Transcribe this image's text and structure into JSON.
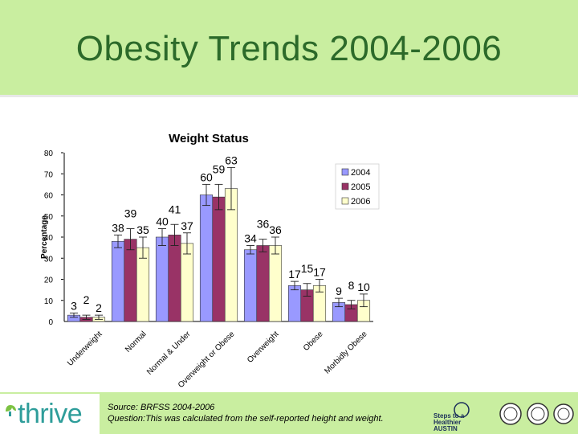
{
  "slide": {
    "title": "Obesity Trends 2004-2006",
    "source_line": "Source: BRFSS 2004-2006",
    "question_line": "Question:This was calculated from the self-reported height and weight.",
    "logo_text": "thrive",
    "partner_logo_text": "Steps to a Healthier AUSTIN"
  },
  "colors": {
    "band": "#c9eea0",
    "title": "#2c6a2a",
    "series_2004": "#9999ff",
    "series_2005": "#993366",
    "series_2006": "#ffffcc"
  },
  "chart_data": {
    "type": "bar",
    "title": "Weight Status",
    "xlabel": "",
    "ylabel": "Percentage",
    "ylim": [
      0,
      80
    ],
    "yticks": [
      0,
      10,
      20,
      30,
      40,
      50,
      60,
      70,
      80
    ],
    "legend_position": "top-right",
    "grid": false,
    "error_bars": true,
    "categories": [
      "Underweight",
      "Normal",
      "Normal & Under",
      "Overweight or Obese",
      "Overweight",
      "Obese",
      "Morbidly Obese"
    ],
    "series": [
      {
        "name": "2004",
        "values": [
          3,
          38,
          40,
          60,
          34,
          17,
          9
        ],
        "errors": [
          1,
          3,
          4,
          5,
          2,
          2,
          2
        ]
      },
      {
        "name": "2005",
        "values": [
          2,
          39,
          41,
          59,
          36,
          15,
          8
        ],
        "errors": [
          1,
          5,
          5,
          6,
          3,
          3,
          2
        ]
      },
      {
        "name": "2006",
        "values": [
          2,
          35,
          37,
          63,
          36,
          17,
          10
        ],
        "errors": [
          1,
          5,
          5,
          10,
          4,
          3,
          3
        ]
      }
    ],
    "data_labels": [
      [
        "3",
        "38",
        "40",
        "60",
        "34",
        "17",
        "9"
      ],
      [
        "2",
        "39",
        "41",
        "59",
        "36",
        "15",
        "8"
      ],
      [
        "2",
        "35",
        "37",
        "63",
        "36",
        "17",
        "10"
      ]
    ]
  }
}
